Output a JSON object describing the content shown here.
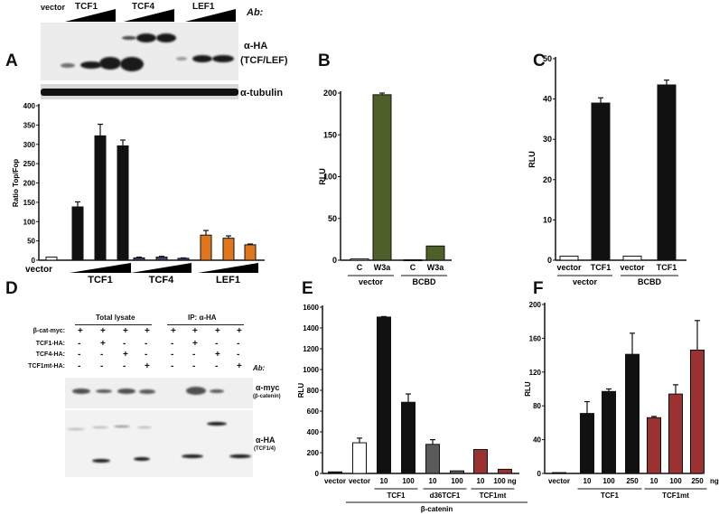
{
  "panels": {
    "A": "A",
    "B": "B",
    "C": "C",
    "D": "D",
    "E": "E",
    "F": "F"
  },
  "blotA": {
    "lanes": {
      "vector": "vector",
      "tcf1": "TCF1",
      "tcf4": "TCF4",
      "lef1": "LEF1"
    },
    "ab_label": "Ab:",
    "ha_label": "α-HA",
    "ha_sub": "(TCF/LEF)",
    "tubulin_label": "α-tubulin"
  },
  "blotD": {
    "header_total": "Total lysate",
    "header_ip": "IP: α-HA",
    "rows": [
      {
        "label": "β-cat-myc:",
        "values": [
          "+",
          "+",
          "+",
          "+",
          "+",
          "+",
          "+",
          "+"
        ]
      },
      {
        "label": "TCF1-HA:",
        "values": [
          "-",
          "+",
          "-",
          "-",
          "-",
          "+",
          "-",
          "-"
        ]
      },
      {
        "label": "TCF4-HA:",
        "values": [
          "-",
          "-",
          "+",
          "-",
          "-",
          "-",
          "+",
          "-"
        ]
      },
      {
        "label": "TCF1mt-HA:",
        "values": [
          "-",
          "-",
          "-",
          "+",
          "-",
          "-",
          "-",
          "+"
        ]
      }
    ],
    "ab_label": "Ab:",
    "myc_label": "α-myc",
    "myc_sub": "(β-catenin)",
    "ha_label": "α-HA",
    "ha_sub": "(TCF1/4)"
  },
  "colors": {
    "black": "#111111",
    "white": "#ffffff",
    "purple": "#4b3f6e",
    "orange": "#e0761c",
    "green": "#4f5f2a",
    "gray": "#5a5a5a",
    "red": "#9a3232"
  },
  "chart_data": [
    {
      "id": "A",
      "type": "bar",
      "ylabel": "Ratio Top/Fop",
      "ylim": [
        0,
        400
      ],
      "yticks": [
        "0",
        "50",
        "100",
        "150",
        "200",
        "250",
        "300",
        "350",
        "400"
      ],
      "categories": [
        "vector",
        "TCF1",
        "TCF1",
        "TCF1",
        "TCF4",
        "TCF4",
        "TCF4",
        "LEF1",
        "LEF1",
        "LEF1"
      ],
      "values": [
        8,
        138,
        322,
        296,
        6,
        8,
        5,
        65,
        57,
        40
      ],
      "errors": [
        0,
        13,
        30,
        15,
        2,
        2,
        1,
        12,
        6,
        2
      ],
      "colors": [
        "white",
        "black",
        "black",
        "black",
        "purple",
        "purple",
        "purple",
        "orange",
        "orange",
        "orange"
      ],
      "tick_labels": [
        "vector",
        "",
        "",
        "",
        "",
        "",
        "",
        "",
        "",
        ""
      ],
      "groups": [
        {
          "label": "TCF1",
          "from": 1,
          "to": 3
        },
        {
          "label": "TCF4",
          "from": 4,
          "to": 6
        },
        {
          "label": "LEF1",
          "from": 7,
          "to": 9
        }
      ],
      "outer_group": null
    },
    {
      "id": "B",
      "type": "bar",
      "ylabel": "RLU",
      "ylim": [
        0,
        200
      ],
      "yticks": [
        "0",
        "50",
        "100",
        "150",
        "200"
      ],
      "categories": [
        "C",
        "W3a",
        "C",
        "W3a"
      ],
      "values": [
        1.5,
        198,
        0.5,
        17
      ],
      "errors": [
        0,
        2,
        0,
        0
      ],
      "colors": [
        "white",
        "green",
        "white",
        "green"
      ],
      "tick_labels": [
        "C",
        "W3a",
        "C",
        "W3a"
      ],
      "groups": [
        {
          "label": "vector",
          "from": 0,
          "to": 1
        },
        {
          "label": "BCBD",
          "from": 2,
          "to": 3
        }
      ],
      "outer_group": null
    },
    {
      "id": "C",
      "type": "bar",
      "ylabel": "RLU",
      "ylim": [
        0,
        50
      ],
      "yticks": [
        "0",
        "10",
        "20",
        "30",
        "40",
        "50"
      ],
      "categories": [
        "vector",
        "TCF1",
        "vector",
        "TCF1"
      ],
      "values": [
        1,
        39,
        1,
        43.5
      ],
      "errors": [
        0,
        1.3,
        0,
        1.2
      ],
      "colors": [
        "white",
        "black",
        "white",
        "black"
      ],
      "tick_labels": [
        "vector",
        "TCF1",
        "vector",
        "TCF1"
      ],
      "groups": [
        {
          "label": "vector",
          "from": 0,
          "to": 1
        },
        {
          "label": "BCBD",
          "from": 2,
          "to": 3
        }
      ],
      "outer_group": null
    },
    {
      "id": "E",
      "type": "bar",
      "ylabel": "RLU",
      "ylim": [
        0,
        1600
      ],
      "yticks": [
        "0",
        "200",
        "400",
        "600",
        "800",
        "1000",
        "1200",
        "1400",
        "1600"
      ],
      "categories": [
        "vector",
        "vector",
        "TCF1 10",
        "TCF1 100",
        "d36TCF1 10",
        "d36TCF1 100",
        "TCF1mt 10",
        "TCF1mt 100"
      ],
      "values": [
        15,
        295,
        1505,
        685,
        280,
        25,
        230,
        40
      ],
      "errors": [
        0,
        45,
        5,
        80,
        45,
        0,
        0,
        0
      ],
      "colors": [
        "black",
        "white",
        "black",
        "black",
        "gray",
        "gray",
        "red",
        "red"
      ],
      "tick_labels": [
        "vector",
        "vector",
        "10",
        "100",
        "10",
        "100",
        "10",
        "100 ng"
      ],
      "groups": [
        {
          "label": "TCF1",
          "from": 2,
          "to": 3
        },
        {
          "label": "d36TCF1",
          "from": 4,
          "to": 5
        },
        {
          "label": "TCF1mt",
          "from": 6,
          "to": 7
        }
      ],
      "outer_group": {
        "label": "β-catenin",
        "from": 1,
        "to": 7
      }
    },
    {
      "id": "F",
      "type": "bar",
      "ylabel": "RLU",
      "ylim": [
        0,
        200
      ],
      "yticks": [
        "0",
        "40",
        "80",
        "120",
        "160",
        "200"
      ],
      "categories": [
        "vector",
        "TCF1 10",
        "TCF1 100",
        "TCF1 250",
        "TCF1mt 10",
        "TCF1mt 100",
        "TCF1mt 250"
      ],
      "values": [
        1,
        71,
        97,
        141,
        66,
        94,
        146
      ],
      "errors": [
        0,
        14,
        3,
        25,
        1.5,
        11,
        35
      ],
      "colors": [
        "black",
        "black",
        "black",
        "black",
        "red",
        "red",
        "red"
      ],
      "tick_labels": [
        "vector",
        "10",
        "100",
        "250",
        "10",
        "100",
        "250"
      ],
      "groups": [
        {
          "label": "TCF1",
          "from": 1,
          "to": 3
        },
        {
          "label": "TCF1mt",
          "from": 4,
          "to": 6
        }
      ],
      "outer_group": null,
      "unit_label": "ng"
    }
  ]
}
